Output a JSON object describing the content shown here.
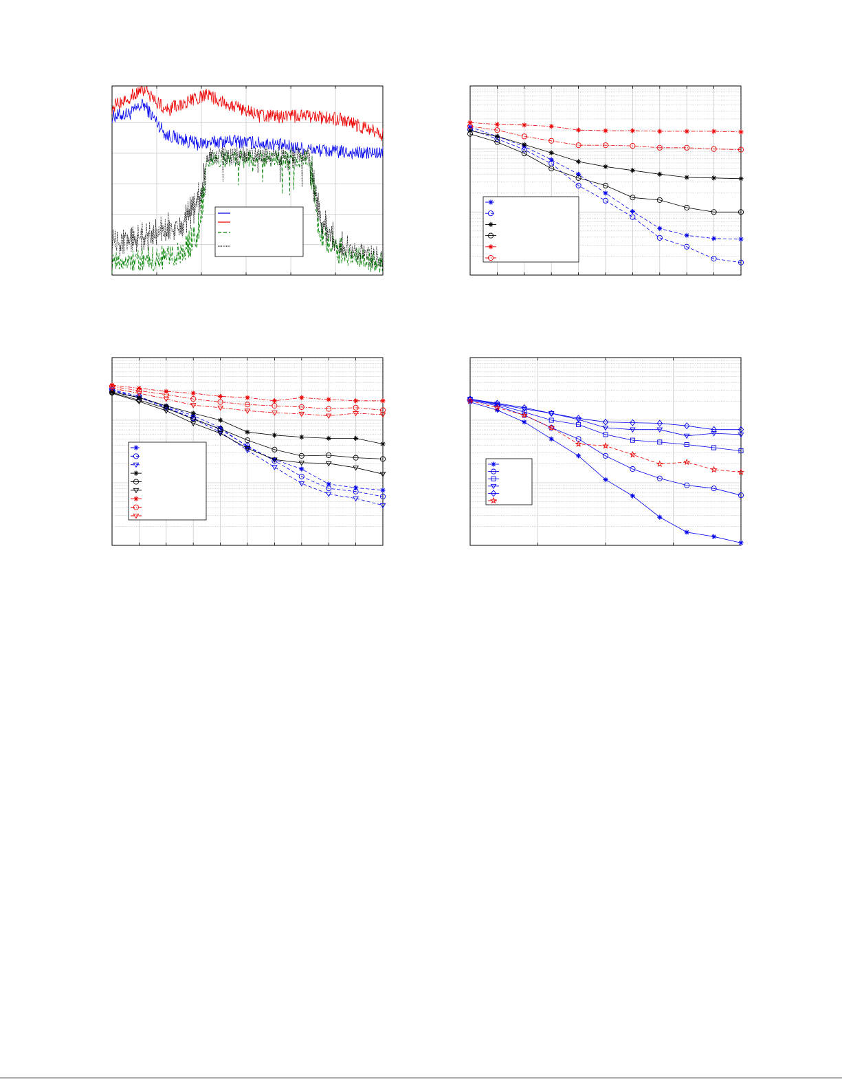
{
  "chart_data": [
    {
      "type": "line",
      "title": "",
      "xlabel": "",
      "ylabel": "",
      "xlim": [
        0,
        6
      ],
      "ylim": [
        0,
        6.2
      ],
      "yscale": "linear",
      "grid": true,
      "legend_placement": "lower-center",
      "legend_entries": [
        "",
        "",
        "",
        ""
      ],
      "series": [
        {
          "name": "",
          "color": "#0000ee",
          "style": "solid",
          "noisy": true,
          "points": [
            [
              0,
              5.2
            ],
            [
              0.4,
              5.3
            ],
            [
              0.7,
              5.6
            ],
            [
              1.2,
              4.6
            ],
            [
              1.9,
              4.3
            ],
            [
              2.6,
              4.4
            ],
            [
              3.5,
              4.3
            ],
            [
              4.5,
              4.1
            ],
            [
              5.4,
              4.0
            ],
            [
              6,
              4.0
            ]
          ]
        },
        {
          "name": "",
          "color": "#ee0000",
          "style": "solid",
          "noisy": true,
          "points": [
            [
              0,
              5.5
            ],
            [
              0.7,
              6.1
            ],
            [
              1.2,
              5.4
            ],
            [
              2.1,
              5.9
            ],
            [
              3.3,
              5.2
            ],
            [
              4.4,
              5.2
            ],
            [
              5.1,
              5.1
            ],
            [
              6,
              4.6
            ]
          ]
        },
        {
          "name": "",
          "color": "#008000",
          "style": "dashed",
          "noisy": true,
          "points": [
            [
              0,
              0.4
            ],
            [
              1,
              0.5
            ],
            [
              1.6,
              0.8
            ],
            [
              1.9,
              1.3
            ],
            [
              2.05,
              3.0
            ],
            [
              2.12,
              3.8
            ],
            [
              4.38,
              3.8
            ],
            [
              4.45,
              3.0
            ],
            [
              4.6,
              1.3
            ],
            [
              5,
              0.8
            ],
            [
              6,
              0.3
            ]
          ]
        },
        {
          "name": "",
          "color": "#000000",
          "style": "dotted",
          "noisy": true,
          "points": [
            [
              0,
              1.0
            ],
            [
              1,
              1.3
            ],
            [
              1.6,
              1.8
            ],
            [
              1.9,
              2.4
            ],
            [
              2.05,
              3.2
            ],
            [
              2.12,
              3.9
            ],
            [
              4.38,
              3.9
            ],
            [
              4.45,
              3.2
            ],
            [
              4.6,
              1.8
            ],
            [
              5,
              1.0
            ],
            [
              6,
              0.5
            ]
          ]
        }
      ]
    },
    {
      "type": "line",
      "title": "",
      "xlabel": "",
      "ylabel": "",
      "x": [
        0,
        1,
        2,
        3,
        4,
        5,
        6,
        7,
        8,
        9,
        10
      ],
      "xlim": [
        0,
        10
      ],
      "yscale": "log",
      "ylim_log10": [
        -3,
        0
      ],
      "grid": true,
      "legend_placement": "lower-left",
      "series": [
        {
          "name": "",
          "color": "#0000ee",
          "style": "dashed",
          "marker": "star",
          "log10_values": [
            -0.65,
            -0.8,
            -0.96,
            -1.17,
            -1.4,
            -1.7,
            -1.99,
            -2.26,
            -2.37,
            -2.42,
            -2.43
          ]
        },
        {
          "name": "",
          "color": "#0000ee",
          "style": "dashed",
          "marker": "circle",
          "log10_values": [
            -0.69,
            -0.84,
            -1.01,
            -1.23,
            -1.58,
            -1.82,
            -2.08,
            -2.41,
            -2.55,
            -2.74,
            -2.8
          ]
        },
        {
          "name": "",
          "color": "#000000",
          "style": "solid",
          "marker": "star",
          "log10_values": [
            -0.71,
            -0.8,
            -0.93,
            -1.06,
            -1.2,
            -1.28,
            -1.34,
            -1.4,
            -1.45,
            -1.46,
            -1.47
          ]
        },
        {
          "name": "",
          "color": "#000000",
          "style": "solid",
          "marker": "circle",
          "log10_values": [
            -0.76,
            -0.89,
            -1.07,
            -1.31,
            -1.46,
            -1.58,
            -1.77,
            -1.81,
            -1.93,
            -2.0,
            -2.0
          ]
        },
        {
          "name": "",
          "color": "#ee0000",
          "style": "dashdot",
          "marker": "star",
          "log10_values": [
            -0.58,
            -0.61,
            -0.62,
            -0.64,
            -0.7,
            -0.71,
            -0.71,
            -0.72,
            -0.72,
            -0.72,
            -0.73
          ]
        },
        {
          "name": "",
          "color": "#ee0000",
          "style": "dashdot",
          "marker": "circle",
          "log10_values": [
            -0.64,
            -0.7,
            -0.8,
            -0.87,
            -0.94,
            -0.94,
            -0.95,
            -0.98,
            -0.98,
            -1.0,
            -1.01
          ]
        }
      ]
    },
    {
      "type": "line",
      "title": "",
      "xlabel": "",
      "ylabel": "",
      "x": [
        0,
        1,
        2,
        3,
        4,
        5,
        6,
        7,
        8,
        9,
        10
      ],
      "xlim": [
        0,
        10
      ],
      "yscale": "log",
      "ylim_log10": [
        -3,
        0
      ],
      "grid": true,
      "legend_placement": "lower-left",
      "series": [
        {
          "name": "",
          "color": "#0000ee",
          "style": "dashed",
          "marker": "star",
          "log10_values": [
            -0.53,
            -0.64,
            -0.77,
            -0.93,
            -1.12,
            -1.43,
            -1.63,
            -1.78,
            -2.02,
            -2.08,
            -2.12
          ]
        },
        {
          "name": "",
          "color": "#0000ee",
          "style": "dashed",
          "marker": "circle",
          "log10_values": [
            -0.51,
            -0.62,
            -0.79,
            -0.97,
            -1.15,
            -1.41,
            -1.65,
            -1.9,
            -2.09,
            -2.14,
            -2.22
          ]
        },
        {
          "name": "",
          "color": "#0000ee",
          "style": "dashed",
          "marker": "triangle",
          "log10_values": [
            -0.52,
            -0.64,
            -0.8,
            -0.98,
            -1.19,
            -1.48,
            -1.75,
            -2.01,
            -2.18,
            -2.25,
            -2.36
          ]
        },
        {
          "name": "",
          "color": "#000000",
          "style": "solid",
          "marker": "star",
          "log10_values": [
            -0.55,
            -0.64,
            -0.77,
            -0.89,
            -1.0,
            -1.19,
            -1.24,
            -1.27,
            -1.29,
            -1.29,
            -1.38
          ]
        },
        {
          "name": "",
          "color": "#000000",
          "style": "solid",
          "marker": "circle",
          "log10_values": [
            -0.56,
            -0.68,
            -0.81,
            -0.98,
            -1.14,
            -1.32,
            -1.47,
            -1.57,
            -1.56,
            -1.6,
            -1.62
          ]
        },
        {
          "name": "",
          "color": "#000000",
          "style": "solid",
          "marker": "triangle",
          "log10_values": [
            -0.57,
            -0.7,
            -0.85,
            -1.05,
            -1.21,
            -1.45,
            -1.63,
            -1.68,
            -1.69,
            -1.76,
            -1.86
          ]
        },
        {
          "name": "",
          "color": "#ee0000",
          "style": "dashdot",
          "marker": "star",
          "log10_values": [
            -0.44,
            -0.49,
            -0.54,
            -0.57,
            -0.62,
            -0.64,
            -0.69,
            -0.64,
            -0.67,
            -0.69,
            -0.69
          ]
        },
        {
          "name": "",
          "color": "#ee0000",
          "style": "dashdot",
          "marker": "circle",
          "log10_values": [
            -0.46,
            -0.53,
            -0.59,
            -0.66,
            -0.71,
            -0.75,
            -0.77,
            -0.79,
            -0.82,
            -0.8,
            -0.84
          ]
        },
        {
          "name": "",
          "color": "#ee0000",
          "style": "dashdot",
          "marker": "triangle",
          "log10_values": [
            -0.49,
            -0.57,
            -0.66,
            -0.76,
            -0.8,
            -0.85,
            -0.88,
            -0.9,
            -0.93,
            -0.89,
            -0.91
          ]
        }
      ]
    },
    {
      "type": "line",
      "title": "",
      "xlabel": "",
      "ylabel": "",
      "x": [
        0,
        1,
        2,
        3,
        4,
        5,
        6,
        7,
        8,
        9,
        10
      ],
      "xlim": [
        0,
        10
      ],
      "x_major_ticks": [
        0,
        2.5,
        5,
        7.5,
        10
      ],
      "yscale": "log",
      "ylim_log10": [
        -3,
        0
      ],
      "grid": true,
      "legend_placement": "lower-left",
      "series": [
        {
          "name": "",
          "color": "#0000ee",
          "style": "solid",
          "marker": "star",
          "log10_values": [
            -0.71,
            -0.84,
            -1.03,
            -1.3,
            -1.57,
            -1.95,
            -2.21,
            -2.55,
            -2.79,
            -2.86,
            -2.96
          ]
        },
        {
          "name": "",
          "color": "#0000ee",
          "style": "solid",
          "marker": "circle",
          "log10_values": [
            -0.68,
            -0.77,
            -0.92,
            -1.12,
            -1.3,
            -1.57,
            -1.78,
            -1.93,
            -2.04,
            -2.09,
            -2.2
          ]
        },
        {
          "name": "",
          "color": "#0000ee",
          "style": "solid",
          "marker": "square",
          "log10_values": [
            -0.67,
            -0.75,
            -0.87,
            -1.0,
            -1.07,
            -1.23,
            -1.32,
            -1.35,
            -1.39,
            -1.44,
            -1.49
          ]
        },
        {
          "name": "",
          "color": "#0000ee",
          "style": "solid",
          "marker": "triangle",
          "log10_values": [
            -0.66,
            -0.74,
            -0.82,
            -0.89,
            -0.99,
            -1.12,
            -1.15,
            -1.15,
            -1.25,
            -1.21,
            -1.23
          ]
        },
        {
          "name": "",
          "color": "#0000ee",
          "style": "solid",
          "marker": "diamond",
          "log10_values": [
            -0.66,
            -0.73,
            -0.8,
            -0.89,
            -0.97,
            -1.03,
            -1.04,
            -1.05,
            -1.09,
            -1.15,
            -1.15
          ]
        },
        {
          "name": "",
          "color": "#ee0000",
          "style": "dashed",
          "marker": "pentagram",
          "log10_values": [
            -0.69,
            -0.8,
            -0.92,
            -1.12,
            -1.38,
            -1.41,
            -1.55,
            -1.7,
            -1.67,
            -1.79,
            -1.83
          ]
        }
      ]
    }
  ]
}
